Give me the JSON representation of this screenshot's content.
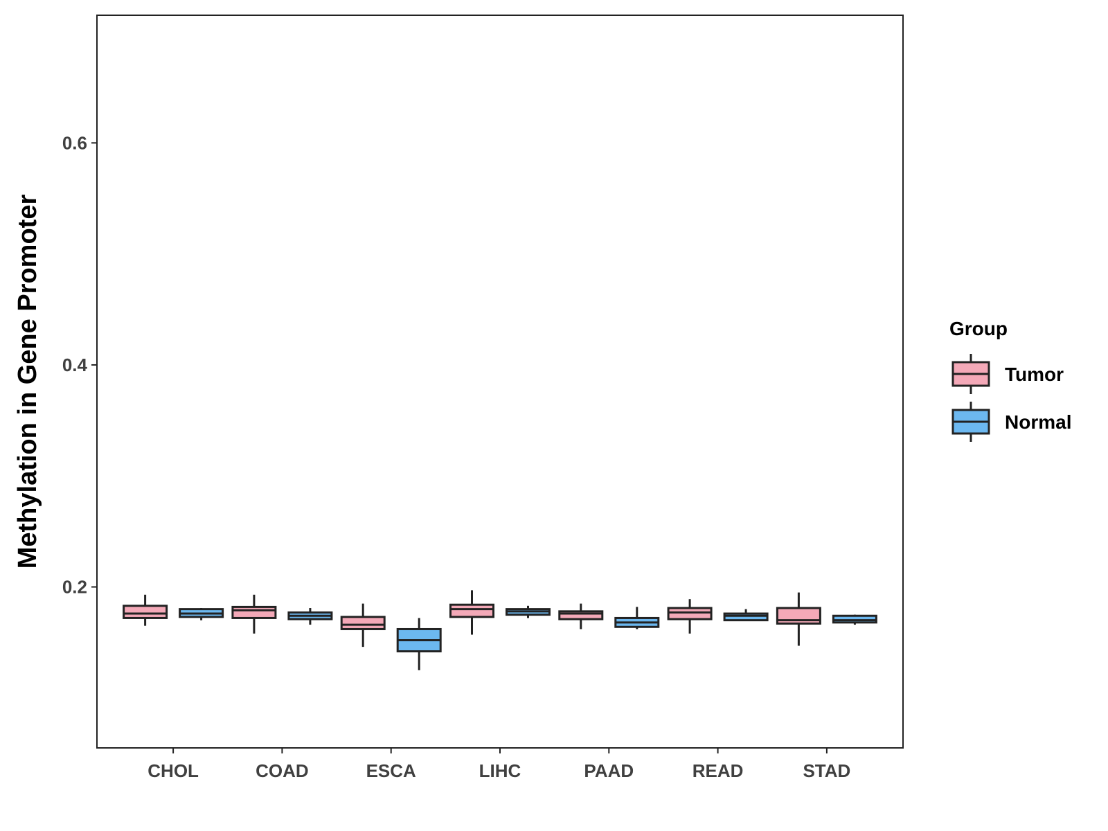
{
  "chart_data": {
    "type": "boxplot",
    "title": "",
    "xlabel": "",
    "ylabel": "Methylation in Gene Promoter",
    "ylim": [
      0.055,
      0.715
    ],
    "yticks": [
      0.2,
      0.4,
      0.6
    ],
    "ytick_labels": [
      "0.2",
      "0.4",
      "0.6"
    ],
    "grid": false,
    "legend": {
      "title": "Group",
      "position": "right",
      "entries": [
        {
          "name": "Tumor",
          "color": "#F4A9B8"
        },
        {
          "name": "Normal",
          "color": "#6CB8F0"
        }
      ]
    },
    "categories": [
      "CHOL",
      "COAD",
      "ESCA",
      "LIHC",
      "PAAD",
      "READ",
      "STAD"
    ],
    "series": [
      {
        "name": "Tumor",
        "color": "#F4A9B8",
        "boxes": [
          {
            "min": 0.165,
            "q1": 0.172,
            "median": 0.176,
            "q3": 0.183,
            "max": 0.193
          },
          {
            "min": 0.158,
            "q1": 0.172,
            "median": 0.179,
            "q3": 0.182,
            "max": 0.193
          },
          {
            "min": 0.146,
            "q1": 0.162,
            "median": 0.166,
            "q3": 0.173,
            "max": 0.185
          },
          {
            "min": 0.157,
            "q1": 0.173,
            "median": 0.18,
            "q3": 0.184,
            "max": 0.197
          },
          {
            "min": 0.162,
            "q1": 0.171,
            "median": 0.176,
            "q3": 0.178,
            "max": 0.185
          },
          {
            "min": 0.158,
            "q1": 0.171,
            "median": 0.177,
            "q3": 0.181,
            "max": 0.189
          },
          {
            "min": 0.147,
            "q1": 0.167,
            "median": 0.17,
            "q3": 0.181,
            "max": 0.195
          }
        ]
      },
      {
        "name": "Normal",
        "color": "#6CB8F0",
        "boxes": [
          {
            "min": 0.17,
            "q1": 0.173,
            "median": 0.176,
            "q3": 0.18,
            "max": 0.181
          },
          {
            "min": 0.166,
            "q1": 0.171,
            "median": 0.174,
            "q3": 0.177,
            "max": 0.181
          },
          {
            "min": 0.125,
            "q1": 0.142,
            "median": 0.152,
            "q3": 0.162,
            "max": 0.172
          },
          {
            "min": 0.172,
            "q1": 0.175,
            "median": 0.178,
            "q3": 0.18,
            "max": 0.183
          },
          {
            "min": 0.162,
            "q1": 0.164,
            "median": 0.168,
            "q3": 0.172,
            "max": 0.182
          },
          {
            "min": 0.17,
            "q1": 0.17,
            "median": 0.174,
            "q3": 0.176,
            "max": 0.18
          },
          {
            "min": 0.166,
            "q1": 0.168,
            "median": 0.17,
            "q3": 0.174,
            "max": 0.175
          }
        ]
      }
    ]
  }
}
